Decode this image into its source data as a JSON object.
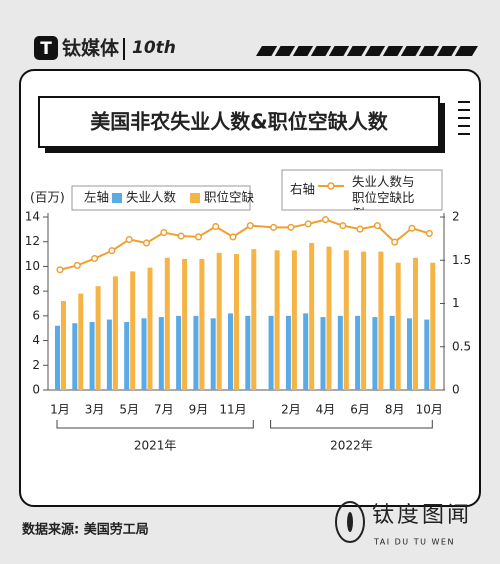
{
  "brand": {
    "name": "钛媒体",
    "badge": "10th"
  },
  "chart_data": {
    "type": "bar",
    "title": "美国非农失业人数&职位空缺人数",
    "y_label": "(百万)",
    "left_axis_label": "左轴",
    "right_axis_label": "右轴",
    "categories": [
      "1月",
      null,
      "3月",
      null,
      "5月",
      null,
      "7月",
      null,
      "9月",
      null,
      "11月",
      null,
      null,
      "2月",
      null,
      "4月",
      null,
      "6月",
      null,
      "8月",
      null,
      "10月"
    ],
    "groups": [
      {
        "label": "2021年",
        "start": 0,
        "end": 11
      },
      {
        "label": "2022年",
        "start": 12,
        "end": 21
      }
    ],
    "series": [
      {
        "name": "失业人数",
        "type": "bar",
        "color": "#5aaae6",
        "values": [
          5.2,
          5.4,
          5.5,
          5.7,
          5.5,
          5.8,
          5.9,
          6.0,
          6.0,
          5.8,
          6.2,
          6.0,
          6.0,
          6.0,
          6.2,
          5.9,
          6.0,
          6.0,
          5.9,
          6.0,
          5.8,
          5.7
        ]
      },
      {
        "name": "职位空缺",
        "type": "bar",
        "color": "#f5b445",
        "values": [
          7.2,
          7.8,
          8.4,
          9.2,
          9.6,
          9.9,
          10.7,
          10.6,
          10.6,
          11.1,
          11.0,
          11.4,
          11.3,
          11.3,
          11.9,
          11.6,
          11.3,
          11.2,
          11.2,
          10.3,
          10.7,
          10.3
        ]
      },
      {
        "name": "失业人数与职位空缺比例",
        "type": "line",
        "axis": "y2",
        "color": "#f0a030",
        "values": [
          1.39,
          1.44,
          1.52,
          1.61,
          1.74,
          1.7,
          1.82,
          1.78,
          1.77,
          1.89,
          1.77,
          1.9,
          1.88,
          1.88,
          1.92,
          1.97,
          1.9,
          1.86,
          1.9,
          1.71,
          1.87,
          1.81
        ]
      }
    ],
    "ylim": [
      0,
      14
    ],
    "yticks": [
      0,
      2,
      4,
      6,
      8,
      10,
      12,
      14
    ],
    "y2lim": [
      0,
      2
    ],
    "y2ticks": [
      0,
      0.5,
      1,
      1.5,
      2
    ],
    "source": "数据来源: 美国劳工局"
  },
  "footer": {
    "logo": "钛度图闻",
    "logo_sub": "TAI DU TU WEN"
  }
}
